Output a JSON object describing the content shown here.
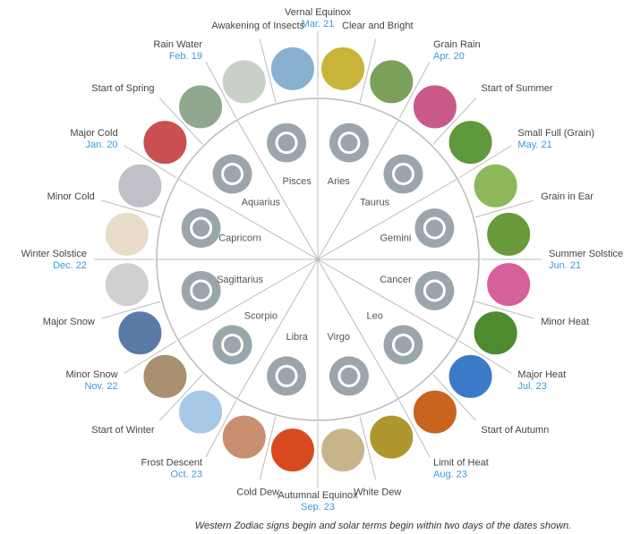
{
  "solar_terms": [
    {
      "name": "Vernal Equinox",
      "date": "Mar. 21"
    },
    {
      "name": "Clear and Bright"
    },
    {
      "name": "Grain Rain",
      "date": "Apr. 20"
    },
    {
      "name": "Start of Summer"
    },
    {
      "name": "Small Full (Grain)",
      "date": "May. 21"
    },
    {
      "name": "Grain in Ear"
    },
    {
      "name": "Summer Solstice",
      "date": "Jun. 21"
    },
    {
      "name": "Minor Heat"
    },
    {
      "name": "Major Heat",
      "date": "Jul. 23"
    },
    {
      "name": "Start of Autumn"
    },
    {
      "name": "Limit of Heat",
      "date": "Aug. 23"
    },
    {
      "name": "White Dew"
    },
    {
      "name": "Autumnal Equinox",
      "date": "Sep. 23"
    },
    {
      "name": "Cold Dew"
    },
    {
      "name": "Frost Descent",
      "date": "Oct. 23"
    },
    {
      "name": "Start of Winter"
    },
    {
      "name": "Minor Snow",
      "date": "Nov. 22"
    },
    {
      "name": "Major Snow"
    },
    {
      "name": "Winter Solstice",
      "date": "Dec. 22"
    },
    {
      "name": "Minor Cold"
    },
    {
      "name": "Major Cold",
      "date": "Jan. 20"
    },
    {
      "name": "Start of Spring"
    },
    {
      "name": "Rain Water",
      "date": "Feb. 19"
    },
    {
      "name": "Awakening of Insects"
    }
  ],
  "zodiac_signs": [
    "Aries",
    "Taurus",
    "Gemini",
    "Cancer",
    "Leo",
    "Virgo",
    "Libra",
    "Scorpio",
    "Sagittarius",
    "Capricorn",
    "Aquarius",
    "Pisces"
  ],
  "caption": "Western Zodiac signs begin and solar terms begin within two days of the dates shown."
}
